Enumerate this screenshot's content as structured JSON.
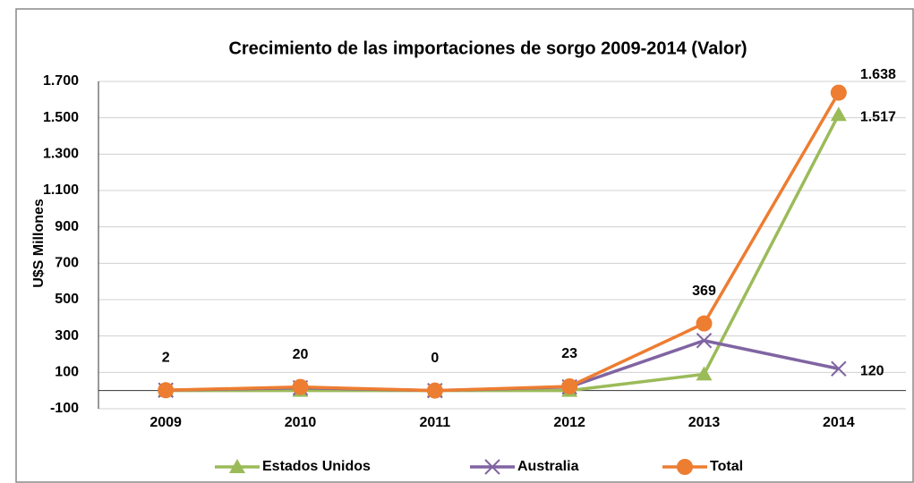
{
  "chart_data": {
    "type": "line",
    "title": "Crecimiento de las importaciones de sorgo 2009-2014 (Valor)",
    "y_label": "U$S Millones",
    "categories": [
      "2009",
      "2010",
      "2011",
      "2012",
      "2013",
      "2014"
    ],
    "series": [
      {
        "name": "Estados Unidos",
        "color": "#9bbb59",
        "marker": "triangle",
        "values": [
          0,
          0,
          0,
          0,
          90,
          1517
        ],
        "value_labels": [
          null,
          null,
          null,
          null,
          null,
          "1.517"
        ]
      },
      {
        "name": "Australia",
        "color": "#8064a2",
        "marker": "x",
        "values": [
          2,
          15,
          0,
          20,
          275,
          120
        ],
        "value_labels": [
          null,
          null,
          null,
          null,
          null,
          "120"
        ]
      },
      {
        "name": "Total",
        "color": "#ed7d31",
        "marker": "circle",
        "values": [
          2,
          20,
          0,
          23,
          369,
          1638
        ],
        "value_labels": [
          "2",
          "20",
          "0",
          "23",
          "369",
          "1.638"
        ]
      }
    ],
    "ylim": [
      -100,
      1700
    ],
    "yticks": [
      -100,
      100,
      300,
      500,
      700,
      900,
      {
        "value": 1100,
        "label": "1.100"
      },
      {
        "value": 1300,
        "label": "1.300"
      },
      {
        "value": 1500,
        "label": "1.500"
      },
      {
        "value": 1700,
        "label": "1.700"
      }
    ],
    "grid": true,
    "legend": "bottom"
  }
}
